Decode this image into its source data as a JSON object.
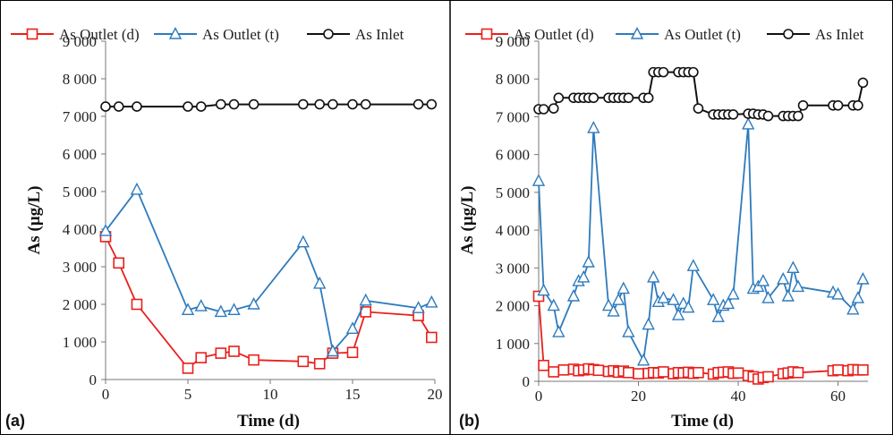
{
  "colors": {
    "outlet_d": "#e8201c",
    "outlet_t": "#2e7bbd",
    "inlet": "#111111"
  },
  "chart_data": [
    {
      "type": "line",
      "panel_label": "(a)",
      "xlabel": "Time (d)",
      "ylabel": "As (µg/L)",
      "xlim": [
        0,
        20
      ],
      "ylim": [
        0,
        9000
      ],
      "xticks": [
        "0",
        "5",
        "10",
        "15",
        "20"
      ],
      "yticks": [
        "0",
        "1 000",
        "2 000",
        "3 000",
        "4 000",
        "5 000",
        "6 000",
        "7 000",
        "8 000",
        "9 000"
      ],
      "legend_position": "top",
      "series": [
        {
          "name": "As Outlet (d)",
          "marker": "square",
          "x": [
            0,
            0.8,
            1.9,
            5,
            5.8,
            7,
            7.8,
            9,
            12,
            13,
            13.8,
            15,
            15.8,
            19,
            19.8
          ],
          "y": [
            3800,
            3100,
            2000,
            300,
            580,
            700,
            750,
            520,
            480,
            420,
            700,
            720,
            1800,
            1700,
            1120
          ]
        },
        {
          "name": "As Outlet (t)",
          "marker": "triangle",
          "x": [
            0,
            1.9,
            5,
            5.8,
            7,
            7.8,
            9,
            12,
            13,
            13.8,
            15,
            15.8,
            19,
            19.8
          ],
          "y": [
            3950,
            5050,
            1850,
            1950,
            1800,
            1850,
            2000,
            3650,
            2550,
            750,
            1350,
            2100,
            1900,
            2050
          ]
        },
        {
          "name": "As Inlet",
          "marker": "circle",
          "x": [
            0,
            0.8,
            1.9,
            5,
            5.8,
            7,
            7.8,
            9,
            12,
            13,
            13.8,
            15,
            15.8,
            19,
            19.8
          ],
          "y": [
            7260,
            7260,
            7260,
            7260,
            7260,
            7320,
            7320,
            7320,
            7320,
            7320,
            7320,
            7320,
            7320,
            7320,
            7320
          ]
        }
      ]
    },
    {
      "type": "line",
      "panel_label": "(b)",
      "xlabel": "Time (d)",
      "ylabel": "As (µg/L)",
      "xlim": [
        0,
        66
      ],
      "ylim": [
        0,
        9000
      ],
      "xticks": [
        "0",
        "20",
        "40",
        "60"
      ],
      "yticks": [
        "0",
        "1 000",
        "2 000",
        "3 000",
        "4 000",
        "5 000",
        "6 000",
        "7 000",
        "8 000",
        "9 000"
      ],
      "legend_position": "top",
      "series": [
        {
          "name": "As Outlet (d)",
          "marker": "square",
          "x": [
            0,
            1,
            3,
            5,
            7,
            8,
            9,
            10,
            11,
            12,
            14,
            15,
            16,
            17,
            18,
            20,
            22,
            23,
            24,
            25,
            27,
            28,
            29,
            30,
            31,
            32,
            35,
            36,
            37,
            38,
            39,
            40,
            42,
            43,
            44,
            45,
            46,
            49,
            50,
            51,
            52,
            59,
            60,
            62,
            63,
            64,
            65
          ],
          "y": [
            2250,
            420,
            250,
            300,
            320,
            280,
            300,
            330,
            310,
            290,
            260,
            280,
            240,
            270,
            230,
            200,
            210,
            230,
            220,
            250,
            200,
            230,
            220,
            240,
            210,
            230,
            190,
            230,
            240,
            250,
            210,
            220,
            150,
            120,
            60,
            100,
            120,
            200,
            220,
            250,
            230,
            280,
            300,
            280,
            310,
            300,
            300
          ]
        },
        {
          "name": "As Outlet (t)",
          "marker": "triangle",
          "x": [
            0,
            1,
            3,
            4,
            7,
            8,
            9,
            10,
            11,
            14,
            15,
            16,
            17,
            18,
            21,
            22,
            23,
            24,
            25,
            27,
            28,
            29,
            30,
            31,
            35,
            36,
            37,
            38,
            39,
            42,
            43,
            44,
            45,
            46,
            49,
            50,
            51,
            52,
            59,
            60,
            63,
            64,
            65
          ],
          "y": [
            5300,
            2400,
            2000,
            1300,
            2250,
            2650,
            2750,
            3150,
            6700,
            2000,
            1850,
            2150,
            2450,
            1300,
            550,
            1500,
            2750,
            2100,
            2200,
            2150,
            1750,
            2050,
            1950,
            3050,
            2150,
            1700,
            2000,
            2050,
            2300,
            6800,
            2450,
            2500,
            2650,
            2200,
            2700,
            2250,
            3000,
            2500,
            2350,
            2300,
            1900,
            2200,
            2700
          ]
        },
        {
          "name": "As Inlet",
          "marker": "circle",
          "x": [
            0,
            1,
            3,
            4,
            7,
            8,
            9,
            10,
            11,
            14,
            15,
            16,
            17,
            18,
            21,
            22,
            23,
            24,
            25,
            28,
            29,
            30,
            31,
            32,
            35,
            36,
            37,
            38,
            39,
            42,
            43,
            44,
            45,
            46,
            49,
            50,
            51,
            52,
            53,
            59,
            60,
            63,
            64,
            65
          ],
          "y": [
            7200,
            7200,
            7220,
            7500,
            7500,
            7500,
            7500,
            7500,
            7500,
            7500,
            7500,
            7500,
            7500,
            7500,
            7500,
            7500,
            8180,
            8180,
            8180,
            8180,
            8180,
            8180,
            8180,
            7220,
            7060,
            7060,
            7060,
            7060,
            7060,
            7080,
            7080,
            7060,
            7060,
            7020,
            7020,
            7020,
            7020,
            7020,
            7300,
            7300,
            7300,
            7300,
            7300,
            7900
          ]
        }
      ]
    }
  ]
}
